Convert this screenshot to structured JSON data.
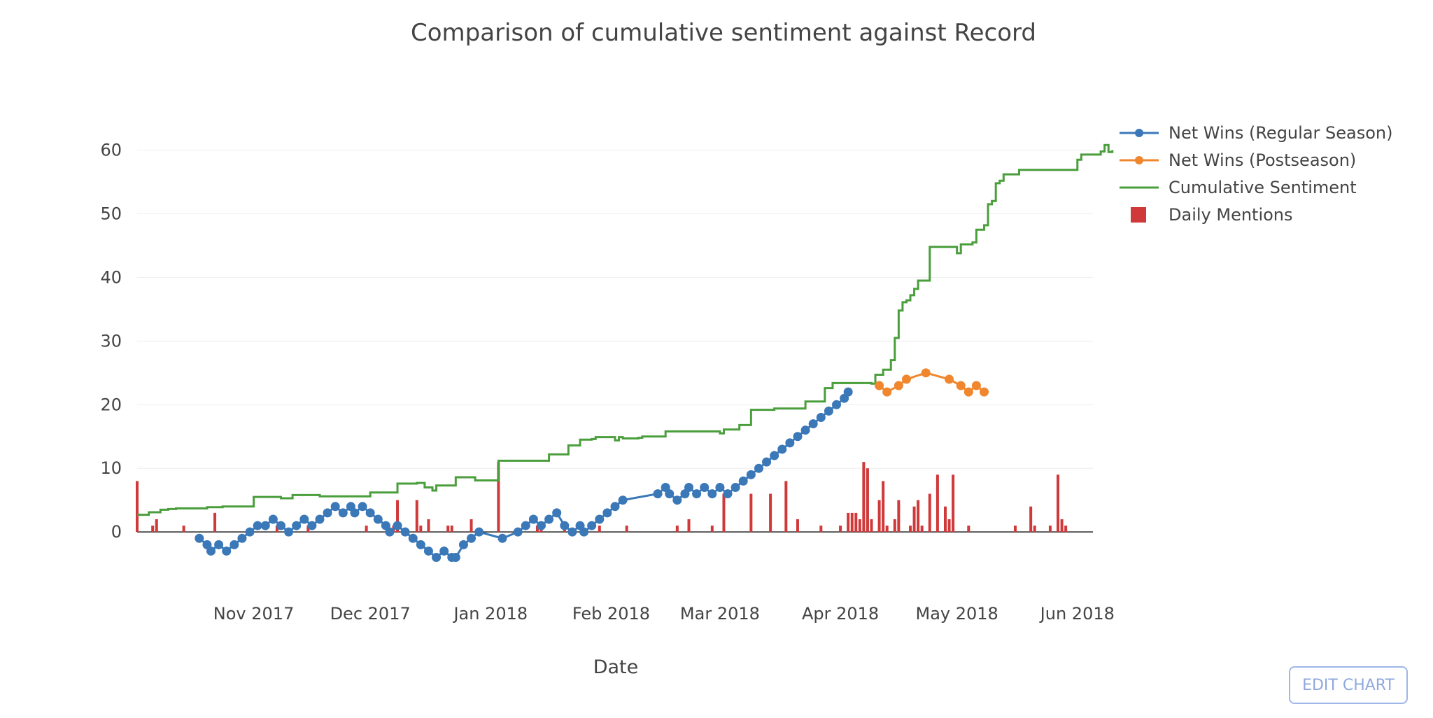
{
  "chart_data": {
    "type": "line",
    "title": "Comparison of cumulative sentiment against Record",
    "xlabel": "Date",
    "ylabel": "",
    "x_range": [
      "2017-10-02",
      "2018-06-05"
    ],
    "ylim": [
      -9,
      66
    ],
    "y_ticks": [
      0,
      10,
      20,
      30,
      40,
      50,
      60
    ],
    "x_ticks": [
      {
        "date": "2017-11-01",
        "label": "Nov 2017"
      },
      {
        "date": "2017-12-01",
        "label": "Dec 2017"
      },
      {
        "date": "2018-01-01",
        "label": "Jan 2018"
      },
      {
        "date": "2018-02-01",
        "label": "Feb 2018"
      },
      {
        "date": "2018-03-01",
        "label": "Mar 2018"
      },
      {
        "date": "2018-04-01",
        "label": "Apr 2018"
      },
      {
        "date": "2018-05-01",
        "label": "May 2018"
      },
      {
        "date": "2018-06-01",
        "label": "Jun 2018"
      }
    ],
    "grid": true,
    "legend_position": "top-right",
    "series": [
      {
        "name": "Net Wins (Regular Season)",
        "mode": "lines+markers",
        "color": "#3a78b8",
        "points": [
          [
            "2017-10-18",
            -1
          ],
          [
            "2017-10-20",
            -2
          ],
          [
            "2017-10-21",
            -3
          ],
          [
            "2017-10-23",
            -2
          ],
          [
            "2017-10-25",
            -3
          ],
          [
            "2017-10-27",
            -2
          ],
          [
            "2017-10-29",
            -1
          ],
          [
            "2017-10-31",
            0
          ],
          [
            "2017-11-02",
            1
          ],
          [
            "2017-11-04",
            1
          ],
          [
            "2017-11-06",
            2
          ],
          [
            "2017-11-08",
            1
          ],
          [
            "2017-11-10",
            0
          ],
          [
            "2017-11-12",
            1
          ],
          [
            "2017-11-14",
            2
          ],
          [
            "2017-11-16",
            1
          ],
          [
            "2017-11-18",
            2
          ],
          [
            "2017-11-20",
            3
          ],
          [
            "2017-11-22",
            4
          ],
          [
            "2017-11-24",
            3
          ],
          [
            "2017-11-26",
            4
          ],
          [
            "2017-11-27",
            3
          ],
          [
            "2017-11-29",
            4
          ],
          [
            "2017-12-01",
            3
          ],
          [
            "2017-12-03",
            2
          ],
          [
            "2017-12-05",
            1
          ],
          [
            "2017-12-06",
            0
          ],
          [
            "2017-12-08",
            1
          ],
          [
            "2017-12-10",
            0
          ],
          [
            "2017-12-12",
            -1
          ],
          [
            "2017-12-14",
            -2
          ],
          [
            "2017-12-16",
            -3
          ],
          [
            "2017-12-18",
            -4
          ],
          [
            "2017-12-20",
            -3
          ],
          [
            "2017-12-22",
            -4
          ],
          [
            "2017-12-23",
            -4
          ],
          [
            "2017-12-25",
            -2
          ],
          [
            "2017-12-27",
            -1
          ],
          [
            "2017-12-29",
            0
          ],
          [
            "2018-01-04",
            -1
          ],
          [
            "2018-01-08",
            0
          ],
          [
            "2018-01-10",
            1
          ],
          [
            "2018-01-12",
            2
          ],
          [
            "2018-01-14",
            1
          ],
          [
            "2018-01-16",
            2
          ],
          [
            "2018-01-18",
            3
          ],
          [
            "2018-01-20",
            1
          ],
          [
            "2018-01-22",
            0
          ],
          [
            "2018-01-24",
            1
          ],
          [
            "2018-01-25",
            0
          ],
          [
            "2018-01-27",
            1
          ],
          [
            "2018-01-29",
            2
          ],
          [
            "2018-01-31",
            3
          ],
          [
            "2018-02-02",
            4
          ],
          [
            "2018-02-04",
            5
          ],
          [
            "2018-02-13",
            6
          ],
          [
            "2018-02-15",
            7
          ],
          [
            "2018-02-16",
            6
          ],
          [
            "2018-02-18",
            5
          ],
          [
            "2018-02-20",
            6
          ],
          [
            "2018-02-21",
            7
          ],
          [
            "2018-02-23",
            6
          ],
          [
            "2018-02-25",
            7
          ],
          [
            "2018-02-27",
            6
          ],
          [
            "2018-03-01",
            7
          ],
          [
            "2018-03-03",
            6
          ],
          [
            "2018-03-05",
            7
          ],
          [
            "2018-03-07",
            8
          ],
          [
            "2018-03-09",
            9
          ],
          [
            "2018-03-11",
            10
          ],
          [
            "2018-03-13",
            11
          ],
          [
            "2018-03-15",
            12
          ],
          [
            "2018-03-17",
            13
          ],
          [
            "2018-03-19",
            14
          ],
          [
            "2018-03-21",
            15
          ],
          [
            "2018-03-23",
            16
          ],
          [
            "2018-03-25",
            17
          ],
          [
            "2018-03-27",
            18
          ],
          [
            "2018-03-29",
            19
          ],
          [
            "2018-03-31",
            20
          ],
          [
            "2018-04-02",
            21
          ],
          [
            "2018-04-03",
            22
          ]
        ]
      },
      {
        "name": "Net Wins (Postseason)",
        "mode": "lines+markers",
        "color": "#f0872e",
        "points": [
          [
            "2018-04-11",
            23
          ],
          [
            "2018-04-13",
            22
          ],
          [
            "2018-04-16",
            23
          ],
          [
            "2018-04-18",
            24
          ],
          [
            "2018-04-23",
            25
          ],
          [
            "2018-04-29",
            24
          ],
          [
            "2018-05-02",
            23
          ],
          [
            "2018-05-04",
            22
          ],
          [
            "2018-05-06",
            23
          ],
          [
            "2018-05-08",
            22
          ]
        ]
      },
      {
        "name": "Cumulative Sentiment",
        "mode": "steps",
        "color": "#4a9e3c",
        "points": [
          [
            "2017-10-02",
            2.7
          ],
          [
            "2017-10-05",
            3.1
          ],
          [
            "2017-10-08",
            3.5
          ],
          [
            "2017-10-10",
            3.6
          ],
          [
            "2017-10-12",
            3.7
          ],
          [
            "2017-10-19",
            3.7
          ],
          [
            "2017-10-20",
            3.9
          ],
          [
            "2017-10-24",
            4.0
          ],
          [
            "2017-10-31",
            4.0
          ],
          [
            "2017-11-01",
            5.5
          ],
          [
            "2017-11-07",
            5.5
          ],
          [
            "2017-11-08",
            5.3
          ],
          [
            "2017-11-10",
            5.3
          ],
          [
            "2017-11-11",
            5.8
          ],
          [
            "2017-11-17",
            5.8
          ],
          [
            "2017-11-18",
            5.6
          ],
          [
            "2017-11-30",
            5.6
          ],
          [
            "2017-12-01",
            6.2
          ],
          [
            "2017-12-07",
            6.2
          ],
          [
            "2017-12-08",
            7.6
          ],
          [
            "2017-12-13",
            7.7
          ],
          [
            "2017-12-15",
            7.0
          ],
          [
            "2017-12-16",
            7.0
          ],
          [
            "2017-12-17",
            6.5
          ],
          [
            "2017-12-18",
            7.3
          ],
          [
            "2017-12-20",
            7.3
          ],
          [
            "2017-12-23",
            8.6
          ],
          [
            "2017-12-27",
            8.6
          ],
          [
            "2017-12-28",
            8.1
          ],
          [
            "2018-01-02",
            8.1
          ],
          [
            "2018-01-03",
            11.2
          ],
          [
            "2018-01-13",
            11.2
          ],
          [
            "2018-01-16",
            12.2
          ],
          [
            "2018-01-20",
            12.2
          ],
          [
            "2018-01-21",
            13.6
          ],
          [
            "2018-01-23",
            13.6
          ],
          [
            "2018-01-24",
            14.5
          ],
          [
            "2018-01-27",
            14.6
          ],
          [
            "2018-01-28",
            14.9
          ],
          [
            "2018-02-01",
            14.9
          ],
          [
            "2018-02-02",
            14.4
          ],
          [
            "2018-02-03",
            14.9
          ],
          [
            "2018-02-04",
            14.7
          ],
          [
            "2018-02-08",
            14.8
          ],
          [
            "2018-02-09",
            15.0
          ],
          [
            "2018-02-14",
            15.0
          ],
          [
            "2018-02-15",
            15.8
          ],
          [
            "2018-02-28",
            15.8
          ],
          [
            "2018-03-01",
            15.5
          ],
          [
            "2018-03-02",
            16.1
          ],
          [
            "2018-03-05",
            16.1
          ],
          [
            "2018-03-06",
            16.8
          ],
          [
            "2018-03-08",
            16.8
          ],
          [
            "2018-03-09",
            19.2
          ],
          [
            "2018-03-14",
            19.2
          ],
          [
            "2018-03-15",
            19.4
          ],
          [
            "2018-03-22",
            19.4
          ],
          [
            "2018-03-23",
            20.5
          ],
          [
            "2018-03-27",
            20.5
          ],
          [
            "2018-03-28",
            22.6
          ],
          [
            "2018-03-29",
            22.6
          ],
          [
            "2018-03-30",
            23.4
          ],
          [
            "2018-04-09",
            23.3
          ],
          [
            "2018-04-10",
            24.7
          ],
          [
            "2018-04-12",
            25.5
          ],
          [
            "2018-04-14",
            27.0
          ],
          [
            "2018-04-15",
            30.5
          ],
          [
            "2018-04-16",
            34.8
          ],
          [
            "2018-04-17",
            36.1
          ],
          [
            "2018-04-18",
            36.4
          ],
          [
            "2018-04-19",
            37.2
          ],
          [
            "2018-04-20",
            38.2
          ],
          [
            "2018-04-21",
            39.5
          ],
          [
            "2018-04-22",
            39.5
          ],
          [
            "2018-04-23",
            39.5
          ],
          [
            "2018-04-24",
            44.8
          ],
          [
            "2018-04-30",
            44.8
          ],
          [
            "2018-05-01",
            43.8
          ],
          [
            "2018-05-02",
            45.2
          ],
          [
            "2018-05-05",
            45.5
          ],
          [
            "2018-05-06",
            47.5
          ],
          [
            "2018-05-08",
            48.2
          ],
          [
            "2018-05-09",
            51.5
          ],
          [
            "2018-05-10",
            52.0
          ],
          [
            "2018-05-11",
            54.8
          ],
          [
            "2018-05-12",
            55.2
          ],
          [
            "2018-05-13",
            56.2
          ],
          [
            "2018-05-16",
            56.2
          ],
          [
            "2018-05-17",
            56.9
          ],
          [
            "2018-05-31",
            56.9
          ],
          [
            "2018-06-01",
            58.5
          ],
          [
            "2018-06-02",
            59.3
          ],
          [
            "2018-06-06",
            59.3
          ],
          [
            "2018-06-07",
            59.8
          ],
          [
            "2018-06-08",
            60.8
          ],
          [
            "2018-06-09",
            59.7
          ],
          [
            "2018-06-10",
            60.0
          ]
        ]
      },
      {
        "name": "Daily Mentions",
        "mode": "bar",
        "color": "#d0393a",
        "points": [
          [
            "2017-10-02",
            8
          ],
          [
            "2017-10-06",
            1
          ],
          [
            "2017-10-07",
            2
          ],
          [
            "2017-10-14",
            1
          ],
          [
            "2017-10-22",
            3
          ],
          [
            "2017-11-07",
            1
          ],
          [
            "2017-11-15",
            1
          ],
          [
            "2017-11-30",
            1
          ],
          [
            "2017-12-07",
            1
          ],
          [
            "2017-12-08",
            5
          ],
          [
            "2017-12-13",
            5
          ],
          [
            "2017-12-14",
            1
          ],
          [
            "2017-12-16",
            2
          ],
          [
            "2017-12-21",
            1
          ],
          [
            "2017-12-22",
            1
          ],
          [
            "2017-12-27",
            2
          ],
          [
            "2018-01-03",
            11
          ],
          [
            "2018-01-13",
            1
          ],
          [
            "2018-01-14",
            1
          ],
          [
            "2018-01-20",
            1
          ],
          [
            "2018-01-29",
            1
          ],
          [
            "2018-02-05",
            1
          ],
          [
            "2018-02-18",
            1
          ],
          [
            "2018-02-21",
            2
          ],
          [
            "2018-02-27",
            1
          ],
          [
            "2018-03-02",
            6
          ],
          [
            "2018-03-09",
            6
          ],
          [
            "2018-03-14",
            6
          ],
          [
            "2018-03-18",
            8
          ],
          [
            "2018-03-21",
            2
          ],
          [
            "2018-03-27",
            1
          ],
          [
            "2018-04-01",
            1
          ],
          [
            "2018-04-03",
            3
          ],
          [
            "2018-04-04",
            3
          ],
          [
            "2018-04-05",
            3
          ],
          [
            "2018-04-06",
            2
          ],
          [
            "2018-04-07",
            11
          ],
          [
            "2018-04-08",
            10
          ],
          [
            "2018-04-09",
            2
          ],
          [
            "2018-04-11",
            5
          ],
          [
            "2018-04-12",
            8
          ],
          [
            "2018-04-13",
            1
          ],
          [
            "2018-04-15",
            2
          ],
          [
            "2018-04-16",
            5
          ],
          [
            "2018-04-19",
            1
          ],
          [
            "2018-04-20",
            4
          ],
          [
            "2018-04-21",
            5
          ],
          [
            "2018-04-22",
            1
          ],
          [
            "2018-04-24",
            6
          ],
          [
            "2018-04-26",
            9
          ],
          [
            "2018-04-28",
            4
          ],
          [
            "2018-04-29",
            2
          ],
          [
            "2018-04-30",
            9
          ],
          [
            "2018-05-04",
            1
          ],
          [
            "2018-05-16",
            1
          ],
          [
            "2018-05-20",
            4
          ],
          [
            "2018-05-21",
            1
          ],
          [
            "2018-05-25",
            1
          ],
          [
            "2018-05-27",
            9
          ],
          [
            "2018-05-28",
            2
          ],
          [
            "2018-05-29",
            1
          ]
        ]
      }
    ]
  },
  "edit_button": {
    "label": "EDIT CHART"
  }
}
